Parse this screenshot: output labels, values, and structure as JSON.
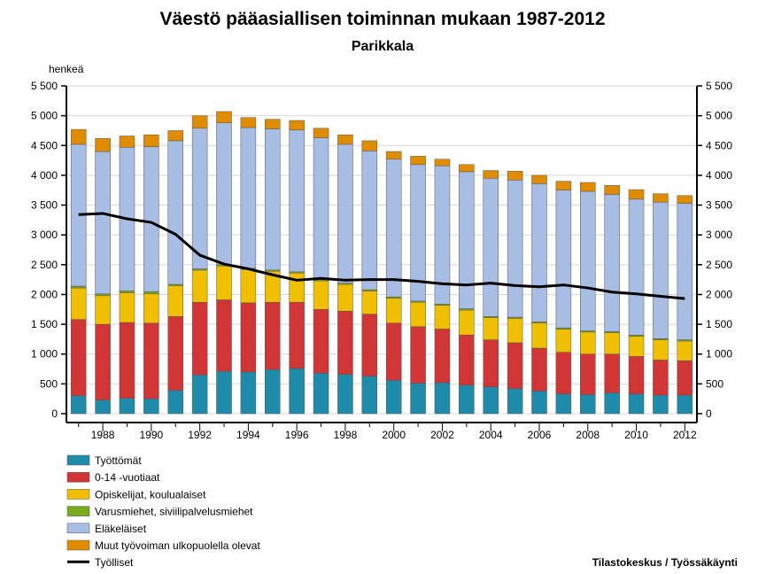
{
  "chart_data": {
    "type": "bar",
    "stacked": true,
    "title": "Väestö pääasiallisen toiminnan mukaan 1987-2012",
    "subtitle": "Parikkala",
    "ylabel": "henkeä",
    "ylim": [
      0,
      5500
    ],
    "yticks": [
      0,
      500,
      1000,
      1500,
      2000,
      2500,
      3000,
      3500,
      4000,
      4500,
      5000,
      5500
    ],
    "ytick_labels": [
      "0",
      "500",
      "1 000",
      "1 500",
      "2 000",
      "2 500",
      "3 000",
      "3 500",
      "4 000",
      "4 500",
      "5 000",
      "5 500"
    ],
    "x": [
      1987,
      1988,
      1989,
      1990,
      1991,
      1992,
      1993,
      1994,
      1995,
      1996,
      1997,
      1998,
      1999,
      2000,
      2001,
      2002,
      2003,
      2004,
      2005,
      2006,
      2007,
      2008,
      2009,
      2010,
      2011,
      2012
    ],
    "xtick_labels": [
      "1988",
      "1990",
      "1992",
      "1994",
      "1996",
      "1998",
      "2000",
      "2002",
      "2004",
      "2006",
      "2008",
      "2010",
      "2012"
    ],
    "grid": "horizontal",
    "legend_position": "bottom-left",
    "series": [
      {
        "name": "Työttömät",
        "color": "#1f8bab",
        "values": [
          300,
          230,
          260,
          250,
          390,
          650,
          710,
          700,
          740,
          760,
          680,
          660,
          630,
          560,
          510,
          520,
          480,
          450,
          420,
          380,
          330,
          320,
          350,
          330,
          310,
          310
        ]
      },
      {
        "name": "0-14 -vuotiaat",
        "color": "#d13535",
        "values": [
          1280,
          1270,
          1270,
          1270,
          1240,
          1220,
          1200,
          1160,
          1130,
          1110,
          1070,
          1060,
          1040,
          960,
          950,
          900,
          840,
          790,
          770,
          720,
          700,
          680,
          650,
          630,
          590,
          580
        ]
      },
      {
        "name": "Opiskelijat, koulualaiset",
        "color": "#f0c000",
        "values": [
          530,
          480,
          500,
          490,
          520,
          540,
          570,
          560,
          520,
          490,
          480,
          450,
          390,
          420,
          410,
          400,
          420,
          370,
          410,
          420,
          390,
          370,
          360,
          340,
          340,
          330
        ]
      },
      {
        "name": "Varusmiehet, siviilipalvelusmiehet",
        "color": "#7aab1e",
        "values": [
          30,
          30,
          30,
          40,
          20,
          20,
          20,
          20,
          20,
          20,
          20,
          20,
          20,
          20,
          20,
          20,
          20,
          20,
          20,
          20,
          20,
          20,
          20,
          20,
          20,
          20
        ]
      },
      {
        "name": "Eläkeläiset",
        "color": "#a7bde3",
        "values": [
          2380,
          2390,
          2410,
          2430,
          2410,
          2360,
          2380,
          2360,
          2370,
          2380,
          2380,
          2330,
          2330,
          2310,
          2290,
          2320,
          2300,
          2320,
          2300,
          2320,
          2310,
          2340,
          2300,
          2280,
          2290,
          2290
        ]
      },
      {
        "name": "Muut työvoiman ulkopuolella olevat",
        "color": "#e08c00",
        "values": [
          250,
          220,
          190,
          200,
          170,
          210,
          190,
          170,
          160,
          160,
          160,
          160,
          170,
          130,
          140,
          110,
          120,
          130,
          150,
          140,
          150,
          150,
          150,
          160,
          140,
          130
        ]
      }
    ],
    "line_series": {
      "name": "Työlliset",
      "color": "#000000",
      "values": [
        3340,
        3360,
        3270,
        3210,
        3010,
        2660,
        2510,
        2430,
        2330,
        2240,
        2270,
        2240,
        2250,
        2250,
        2220,
        2180,
        2160,
        2190,
        2150,
        2130,
        2160,
        2110,
        2040,
        2010,
        1970,
        1930
      ]
    },
    "source": "Tilastokeskus / Työssäkäynti"
  }
}
